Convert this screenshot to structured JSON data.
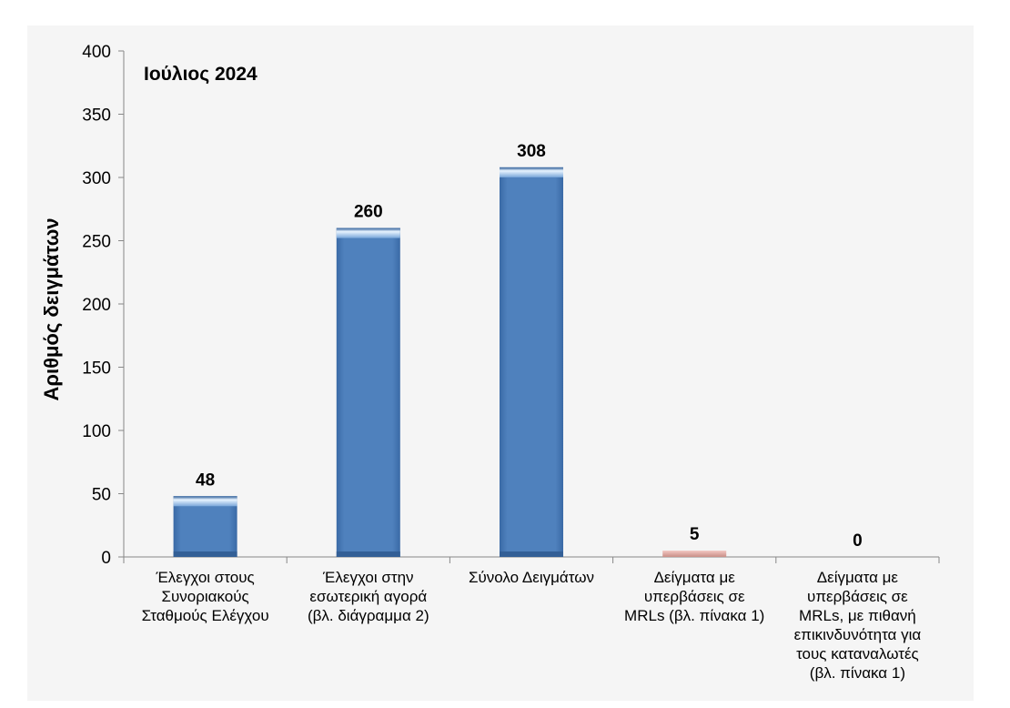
{
  "chart_data": {
    "type": "bar",
    "title": "Ιούλιος 2024",
    "ylabel": "Αριθμός δειγμάτων",
    "xlabel": "",
    "ylim": [
      0,
      400
    ],
    "ytick_step": 50,
    "grid": false,
    "legend": "none",
    "categories": [
      [
        "Έλεγχοι στους",
        "Συνοριακούς",
        "Σταθμούς Ελέγχου"
      ],
      [
        "Έλεγχοι στην",
        "εσωτερική αγορά",
        "(βλ. διάγραμμα 2)"
      ],
      [
        "Σύνολο Δειγμάτων"
      ],
      [
        "Δείγματα με",
        "υπερβάσεις σε",
        "MRLs (βλ. πίνακα 1)"
      ],
      [
        "Δείγματα με",
        "υπερβάσεις σε",
        "MRLs, με πιθανή",
        "επικινδυνότητα για",
        "τους καταναλωτές",
        "(βλ. πίνακα 1)"
      ]
    ],
    "values": [
      48,
      260,
      308,
      5,
      0
    ],
    "data_labels": [
      "48",
      "260",
      "308",
      "5",
      "0"
    ],
    "colors": [
      "#4f81bd",
      "#4f81bd",
      "#4f81bd",
      "#d9a6a0",
      "#d9a6a0"
    ]
  }
}
